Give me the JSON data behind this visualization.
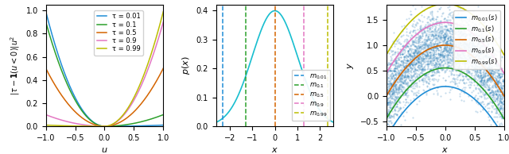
{
  "tau_values": [
    0.01,
    0.1,
    0.5,
    0.9,
    0.99
  ],
  "tau_colors": [
    "#1f8dd6",
    "#2ca02c",
    "#d46400",
    "#e377c2",
    "#bcbd00"
  ],
  "tau_labels": [
    "τ = 0.01",
    "τ = 0.1",
    "τ = 0.5",
    "τ = 0.9",
    "τ = 0.99"
  ],
  "plot1_ylabel": "$|\\tau - \\mathbf{1}(u < 0)|u^2$",
  "plot1_xlabel": "$u$",
  "plot1_xlim": [
    -1.0,
    1.0
  ],
  "plot1_ylim": [
    0.0,
    1.05
  ],
  "plot2_ylabel": "$p(x)$",
  "plot2_xlabel": "$x$",
  "plot2_xlim": [
    -2.6,
    2.6
  ],
  "plot2_ylim": [
    0.0,
    0.42
  ],
  "plot2_vlines_x": [
    -2.326,
    -1.282,
    0.0,
    1.282,
    2.326
  ],
  "plot2_vline_labels": [
    "$m_{0.01}$",
    "$m_{0.1}$",
    "$m_{0.5}$",
    "$m_{0.9}$",
    "$m_{0.99}$"
  ],
  "plot3_ylabel": "$y$",
  "plot3_xlabel": "$x$",
  "plot3_xlim": [
    -1.0,
    1.0
  ],
  "plot3_ylim": [
    -0.6,
    1.8
  ],
  "plot3_line_labels": [
    "$m_{0.01}(s)$",
    "$m_{0.1}(s)$",
    "$m_{0.5}(s)$",
    "$m_{0.9}(s)$",
    "$m_{0.99}(s)$"
  ],
  "scatter_color": "#1f77b4",
  "scatter_alpha": 0.25,
  "scatter_size": 2.5,
  "n_scatter": 4000,
  "noise_std": 0.35,
  "seed": 42
}
